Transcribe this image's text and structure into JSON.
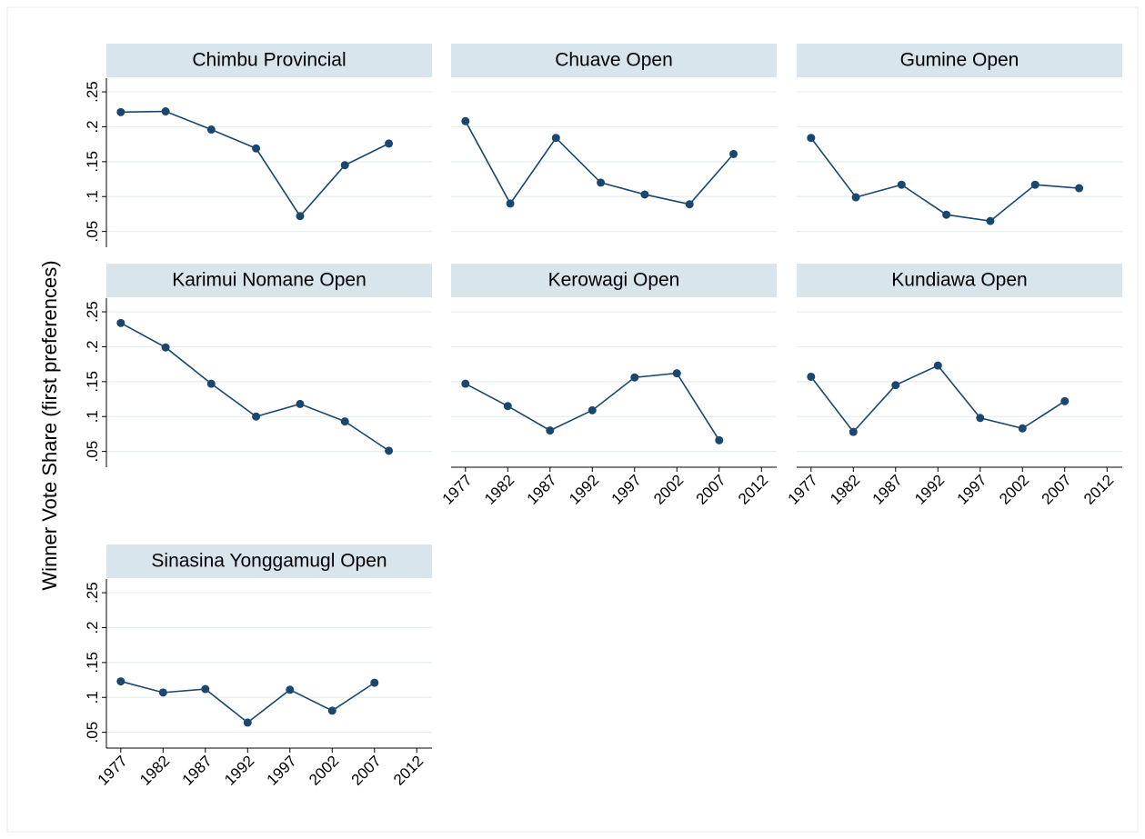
{
  "ylabel": "Winner Vote Share (first preferences)",
  "chart_data": [
    {
      "type": "line",
      "title": "Chimbu Provincial",
      "color": "#1a476f",
      "x": [
        1977,
        1982.3,
        1987.7,
        1993,
        1998.2,
        2003.5,
        2008.7
      ],
      "values": [
        0.221,
        0.222,
        0.196,
        0.169,
        0.072,
        0.145,
        0.176
      ],
      "xlim": [
        1975.3,
        2013.8
      ],
      "ylim": [
        0.03,
        0.267
      ],
      "yticks": [
        {
          "value": 0.05,
          "label": ".05"
        },
        {
          "value": 0.1,
          "label": ".1"
        },
        {
          "value": 0.15,
          "label": ".15"
        },
        {
          "value": 0.2,
          "label": ".2"
        },
        {
          "value": 0.25,
          "label": ".25"
        }
      ],
      "grid": true
    },
    {
      "type": "line",
      "title": "Chuave Open",
      "color": "#1a476f",
      "x": [
        1977,
        1982.3,
        1987.7,
        1993,
        1998.2,
        2003.5,
        2008.7
      ],
      "values": [
        0.208,
        0.09,
        0.184,
        0.12,
        0.103,
        0.089,
        0.161
      ],
      "xlim": [
        1975.3,
        2013.8
      ],
      "ylim": [
        0.03,
        0.267
      ],
      "yticks": [
        0.05,
        0.1,
        0.15,
        0.2,
        0.25
      ],
      "grid": true
    },
    {
      "type": "line",
      "title": "Gumine Open",
      "color": "#1a476f",
      "x": [
        1977,
        1982.3,
        1987.7,
        1993,
        1998.2,
        2003.5,
        2008.7
      ],
      "values": [
        0.184,
        0.099,
        0.117,
        0.074,
        0.065,
        0.117,
        0.112
      ],
      "xlim": [
        1975.3,
        2013.8
      ],
      "ylim": [
        0.03,
        0.267
      ],
      "yticks": [
        0.05,
        0.1,
        0.15,
        0.2,
        0.25
      ],
      "grid": true
    },
    {
      "type": "line",
      "title": "Karimui Nomane Open",
      "color": "#1a476f",
      "x": [
        1977,
        1982.3,
        1987.7,
        1993,
        1998.2,
        2003.5,
        2008.7
      ],
      "values": [
        0.234,
        0.199,
        0.147,
        0.1,
        0.118,
        0.093,
        0.051
      ],
      "xlim": [
        1975.3,
        2013.8
      ],
      "ylim": [
        0.03,
        0.267
      ],
      "yticks": [
        {
          "value": 0.05,
          "label": ".05"
        },
        {
          "value": 0.1,
          "label": ".1"
        },
        {
          "value": 0.15,
          "label": ".15"
        },
        {
          "value": 0.2,
          "label": ".2"
        },
        {
          "value": 0.25,
          "label": ".25"
        }
      ],
      "grid": true
    },
    {
      "type": "line",
      "title": "Kerowagi Open",
      "color": "#1a476f",
      "x": [
        1977,
        1982,
        1987,
        1992,
        1997,
        2002,
        2007
      ],
      "values": [
        0.147,
        0.115,
        0.08,
        0.109,
        0.156,
        0.162,
        0.066
      ],
      "xlim": [
        1975.3,
        2013.8
      ],
      "xticks": [
        1977,
        1982,
        1987,
        1992,
        1997,
        2002,
        2007,
        2012
      ],
      "ylim": [
        0.03,
        0.267
      ],
      "yticks": [
        0.05,
        0.1,
        0.15,
        0.2,
        0.25
      ],
      "grid": true
    },
    {
      "type": "line",
      "title": "Kundiawa Open",
      "color": "#1a476f",
      "x": [
        1977,
        1982,
        1987,
        1992,
        1997,
        2002,
        2007
      ],
      "values": [
        0.157,
        0.078,
        0.145,
        0.173,
        0.098,
        0.083,
        0.122
      ],
      "xlim": [
        1975.3,
        2013.8
      ],
      "xticks": [
        1977,
        1982,
        1987,
        1992,
        1997,
        2002,
        2007,
        2012
      ],
      "ylim": [
        0.03,
        0.267
      ],
      "yticks": [
        0.05,
        0.1,
        0.15,
        0.2,
        0.25
      ],
      "grid": true
    },
    {
      "type": "line",
      "title": "Sinasina Yonggamugl Open",
      "color": "#1a476f",
      "x": [
        1977,
        1982,
        1987,
        1992,
        1997,
        2002,
        2007
      ],
      "values": [
        0.123,
        0.107,
        0.112,
        0.064,
        0.111,
        0.081,
        0.121
      ],
      "xlim": [
        1975.3,
        2013.8
      ],
      "xticks": [
        1977,
        1982,
        1987,
        1992,
        1997,
        2002,
        2007,
        2012
      ],
      "ylim": [
        0.03,
        0.267
      ],
      "yticks": [
        {
          "value": 0.05,
          "label": ".05"
        },
        {
          "value": 0.1,
          "label": ".1"
        },
        {
          "value": 0.15,
          "label": ".15"
        },
        {
          "value": 0.2,
          "label": ".2"
        },
        {
          "value": 0.25,
          "label": ".25"
        }
      ],
      "grid": true
    }
  ]
}
